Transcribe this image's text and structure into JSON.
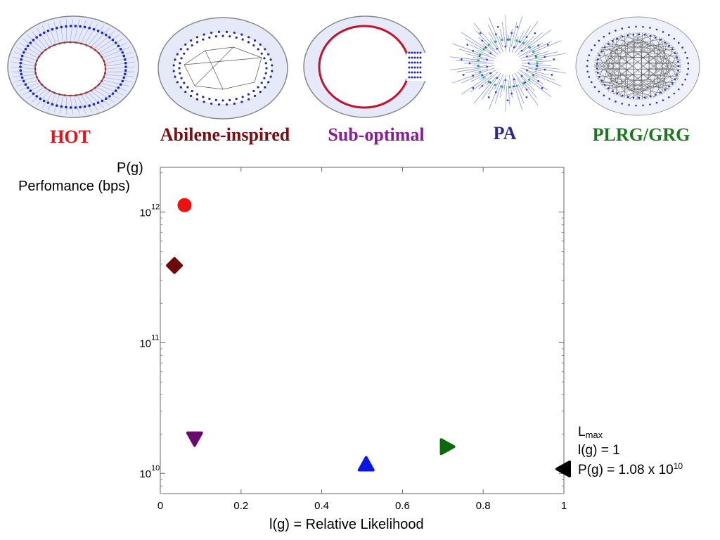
{
  "topologies": [
    {
      "name": "HOT",
      "color": "#e8101a"
    },
    {
      "name": "Abilene-inspired",
      "color": "#7a0e12"
    },
    {
      "name": "Sub-optimal",
      "color": "#8a1a9c"
    },
    {
      "name": "PA",
      "color": "#2a2a8a"
    },
    {
      "name": "PLRG/GRG",
      "color": "#167a16"
    }
  ],
  "chart_data": {
    "type": "scatter",
    "title": "",
    "xlabel": "l(g) = Relative Likelihood",
    "ylabel_line1": "P(g)",
    "ylabel_line2": "Perfomance (bps)",
    "xlim": [
      0,
      1
    ],
    "ylim": [
      7000000000.0,
      2200000000000.0
    ],
    "yscale": "log",
    "grid": false,
    "x_ticks": [
      {
        "value": 0,
        "label": "0"
      },
      {
        "value": 0.2,
        "label": "0.2"
      },
      {
        "value": 0.4,
        "label": "0.4"
      },
      {
        "value": 0.6,
        "label": "0.6"
      },
      {
        "value": 0.8,
        "label": "0.8"
      },
      {
        "value": 1,
        "label": "1"
      }
    ],
    "y_ticks": [
      {
        "value": 10000000000.0,
        "base": "10",
        "exp": "10"
      },
      {
        "value": 100000000000.0,
        "base": "10",
        "exp": "11"
      },
      {
        "value": 1000000000000.0,
        "base": "10",
        "exp": "12"
      }
    ],
    "points": [
      {
        "label": "HOT",
        "x": 0.06,
        "y": 1130000000000.0,
        "marker": "circle",
        "color": "#f01010"
      },
      {
        "label": "Abilene-inspired",
        "x": 0.035,
        "y": 390000000000.0,
        "marker": "diamond",
        "color": "#6e0a0a"
      },
      {
        "label": "Sub-optimal",
        "x": 0.085,
        "y": 18500000000.0,
        "marker": "triangle-down",
        "color": "#6a0a6a"
      },
      {
        "label": "PA",
        "x": 0.51,
        "y": 11700000000.0,
        "marker": "triangle-up",
        "color": "#0a16e6"
      },
      {
        "label": "PLRG/GRG",
        "x": 0.71,
        "y": 16000000000.0,
        "marker": "triangle-right",
        "color": "#0a6a0a"
      },
      {
        "label": "Lmax",
        "x": 1.0,
        "y": 10800000000.0,
        "marker": "triangle-left",
        "color": "#000000"
      }
    ],
    "annotation": {
      "lmax_base": "L",
      "lmax_sub": "max",
      "line2": "l(g) = 1",
      "line3_prefix": "P(g) = 1.08 x 10",
      "line3_exp": "10"
    }
  }
}
